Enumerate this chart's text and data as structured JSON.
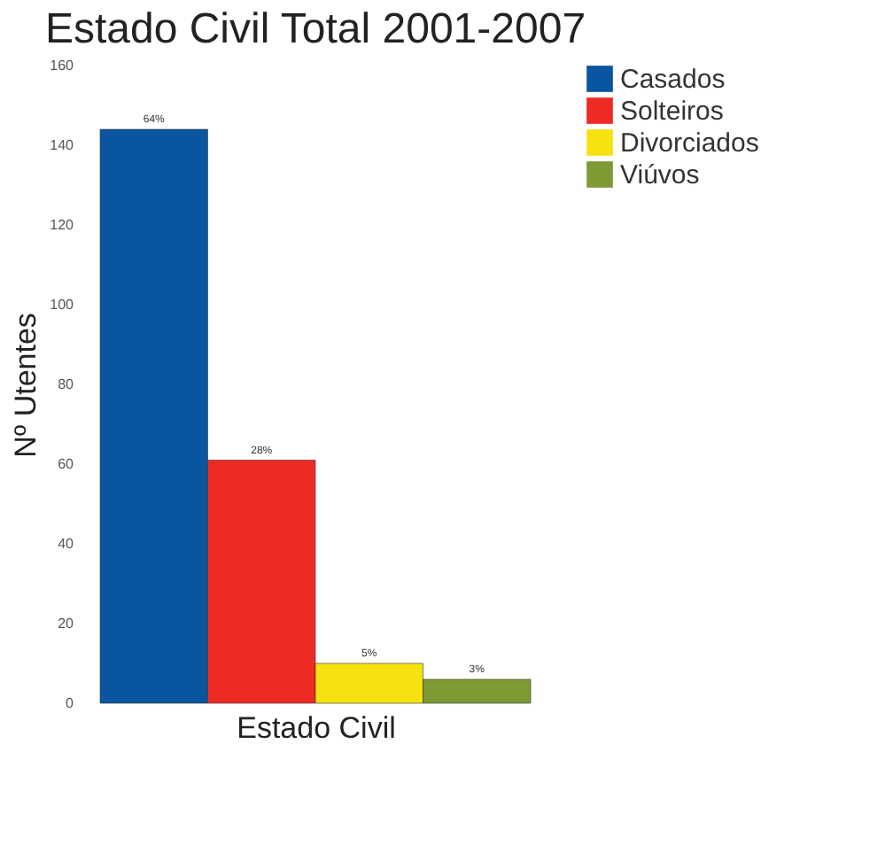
{
  "chart_data": {
    "type": "bar",
    "title": "Estado Civil Total 2001-2007",
    "xlabel": "Estado Civil",
    "ylabel": "Nº Utentes",
    "categories": [
      null
    ],
    "series": [
      {
        "name": "Casados",
        "color": "#0a559f",
        "values": [
          144
        ]
      },
      {
        "name": "Solteiros",
        "color": "#ee2a24",
        "values": [
          61
        ]
      },
      {
        "name": "Divorciados",
        "color": "#f5e20f",
        "values": [
          10
        ]
      },
      {
        "name": "Viúvos",
        "color": "#7d9a35",
        "values": [
          6
        ]
      }
    ],
    "annotations": [
      {
        "text": "64%",
        "y": 144
      },
      {
        "text": "28%",
        "y": 61
      },
      {
        "text": "5%",
        "y": 10
      },
      {
        "text": "3%",
        "y": 6
      }
    ],
    "ylim": [
      0,
      160
    ],
    "yticks": [
      0,
      20,
      40,
      60,
      80,
      100,
      120,
      140,
      160
    ],
    "grid": false,
    "legend": "right"
  }
}
